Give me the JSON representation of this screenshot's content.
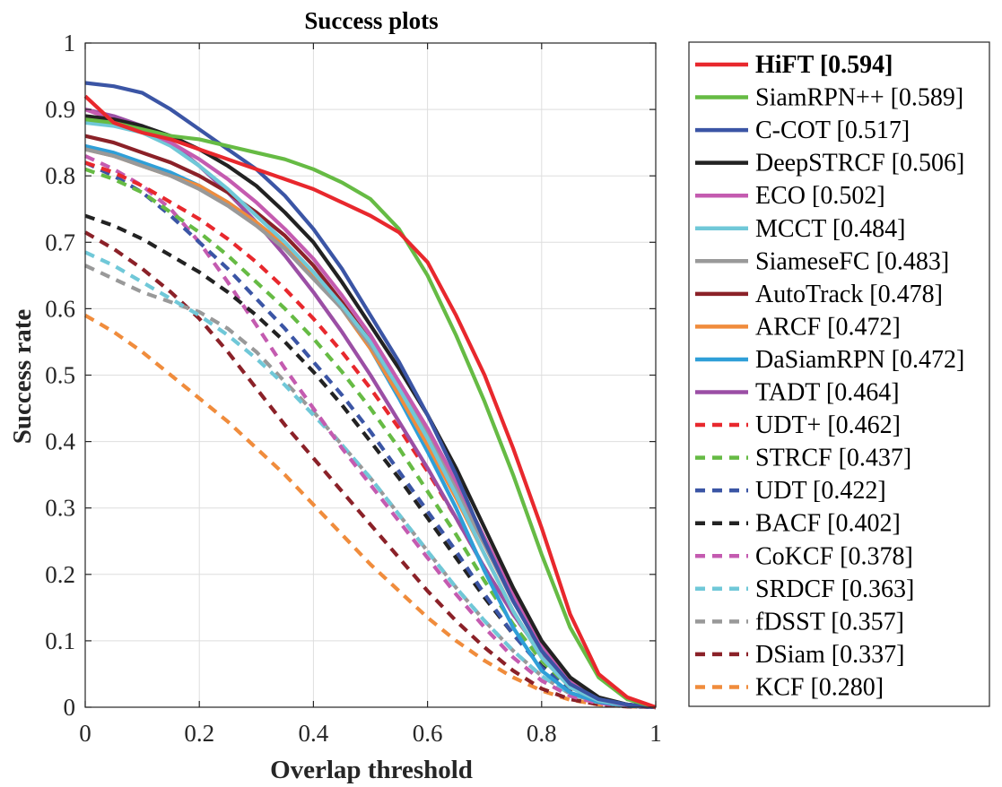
{
  "chart_data": {
    "type": "line",
    "title": "Success plots",
    "xlabel": "Overlap threshold",
    "ylabel": "Success rate",
    "xlim": [
      0,
      1
    ],
    "ylim": [
      0,
      1
    ],
    "xticks": [
      "0",
      "0.2",
      "0.4",
      "0.6",
      "0.8",
      "1"
    ],
    "yticks": [
      "0",
      "0.1",
      "0.2",
      "0.3",
      "0.4",
      "0.5",
      "0.6",
      "0.7",
      "0.8",
      "0.9",
      "1"
    ],
    "grid": true,
    "legend_position": "outside-right",
    "x": [
      0,
      0.05,
      0.1,
      0.15,
      0.2,
      0.25,
      0.3,
      0.35,
      0.4,
      0.45,
      0.5,
      0.55,
      0.6,
      0.65,
      0.7,
      0.75,
      0.8,
      0.85,
      0.9,
      0.95,
      1
    ],
    "series": [
      {
        "name": "HiFT [0.594]",
        "color": "#e8282d",
        "dash": false,
        "bold": true,
        "values": [
          0.92,
          0.88,
          0.865,
          0.855,
          0.84,
          0.825,
          0.81,
          0.795,
          0.78,
          0.76,
          0.74,
          0.715,
          0.67,
          0.59,
          0.5,
          0.39,
          0.27,
          0.14,
          0.05,
          0.015,
          0
        ]
      },
      {
        "name": "SiamRPN++ [0.589]",
        "color": "#66bb44",
        "dash": false,
        "values": [
          0.885,
          0.88,
          0.87,
          0.86,
          0.855,
          0.845,
          0.835,
          0.825,
          0.81,
          0.79,
          0.765,
          0.72,
          0.65,
          0.56,
          0.46,
          0.35,
          0.23,
          0.12,
          0.045,
          0.012,
          0
        ]
      },
      {
        "name": "C-COT [0.517]",
        "color": "#3b55a5",
        "dash": false,
        "values": [
          0.94,
          0.935,
          0.925,
          0.9,
          0.87,
          0.84,
          0.81,
          0.77,
          0.72,
          0.66,
          0.59,
          0.52,
          0.44,
          0.35,
          0.25,
          0.16,
          0.085,
          0.035,
          0.012,
          0.004,
          0
        ]
      },
      {
        "name": "DeepSTRCF [0.506]",
        "color": "#222222",
        "dash": false,
        "values": [
          0.89,
          0.885,
          0.875,
          0.86,
          0.84,
          0.815,
          0.785,
          0.745,
          0.7,
          0.64,
          0.575,
          0.51,
          0.44,
          0.36,
          0.27,
          0.18,
          0.1,
          0.045,
          0.015,
          0.004,
          0
        ]
      },
      {
        "name": "ECO [0.502]",
        "color": "#c45bb0",
        "dash": false,
        "values": [
          0.9,
          0.885,
          0.87,
          0.85,
          0.825,
          0.795,
          0.76,
          0.72,
          0.675,
          0.62,
          0.56,
          0.49,
          0.42,
          0.34,
          0.255,
          0.17,
          0.095,
          0.04,
          0.013,
          0.003,
          0
        ]
      },
      {
        "name": "MCCT [0.484]",
        "color": "#70c8d8",
        "dash": false,
        "values": [
          0.88,
          0.875,
          0.865,
          0.845,
          0.815,
          0.78,
          0.74,
          0.7,
          0.655,
          0.605,
          0.55,
          0.48,
          0.405,
          0.32,
          0.23,
          0.145,
          0.075,
          0.03,
          0.01,
          0.003,
          0
        ]
      },
      {
        "name": "SiameseFC [0.483]",
        "color": "#999999",
        "dash": false,
        "values": [
          0.84,
          0.83,
          0.815,
          0.8,
          0.78,
          0.755,
          0.725,
          0.69,
          0.645,
          0.6,
          0.545,
          0.48,
          0.41,
          0.33,
          0.245,
          0.16,
          0.09,
          0.04,
          0.014,
          0.004,
          0
        ]
      },
      {
        "name": "AutoTrack [0.478]",
        "color": "#8b2128",
        "dash": false,
        "values": [
          0.86,
          0.85,
          0.835,
          0.82,
          0.8,
          0.775,
          0.745,
          0.71,
          0.665,
          0.61,
          0.55,
          0.48,
          0.41,
          0.33,
          0.245,
          0.16,
          0.09,
          0.04,
          0.014,
          0.004,
          0
        ]
      },
      {
        "name": "ARCF [0.472]",
        "color": "#f08c3c",
        "dash": false,
        "values": [
          0.84,
          0.83,
          0.815,
          0.8,
          0.785,
          0.76,
          0.73,
          0.695,
          0.65,
          0.6,
          0.54,
          0.47,
          0.395,
          0.315,
          0.23,
          0.145,
          0.075,
          0.03,
          0.01,
          0.003,
          0
        ]
      },
      {
        "name": "DaSiamRPN [0.472]",
        "color": "#2f9fd8",
        "dash": false,
        "values": [
          0.845,
          0.835,
          0.82,
          0.805,
          0.785,
          0.76,
          0.73,
          0.695,
          0.65,
          0.6,
          0.54,
          0.465,
          0.385,
          0.3,
          0.205,
          0.12,
          0.055,
          0.022,
          0.008,
          0.002,
          0
        ]
      },
      {
        "name": "TADT [0.464]",
        "color": "#9b4fa5",
        "dash": false,
        "values": [
          0.9,
          0.89,
          0.875,
          0.85,
          0.815,
          0.775,
          0.73,
          0.68,
          0.625,
          0.565,
          0.5,
          0.43,
          0.36,
          0.285,
          0.21,
          0.14,
          0.08,
          0.035,
          0.012,
          0.003,
          0
        ]
      },
      {
        "name": "UDT+ [0.462]",
        "color": "#e8282d",
        "dash": true,
        "values": [
          0.82,
          0.805,
          0.785,
          0.76,
          0.735,
          0.705,
          0.67,
          0.63,
          0.585,
          0.535,
          0.48,
          0.42,
          0.355,
          0.285,
          0.21,
          0.14,
          0.08,
          0.036,
          0.012,
          0.003,
          0
        ]
      },
      {
        "name": "STRCF [0.437]",
        "color": "#66bb44",
        "dash": true,
        "values": [
          0.81,
          0.795,
          0.775,
          0.745,
          0.715,
          0.68,
          0.64,
          0.6,
          0.555,
          0.505,
          0.45,
          0.39,
          0.325,
          0.26,
          0.19,
          0.125,
          0.07,
          0.03,
          0.01,
          0.003,
          0
        ]
      },
      {
        "name": "UDT [0.422]",
        "color": "#3b55a5",
        "dash": true,
        "values": [
          0.82,
          0.8,
          0.775,
          0.74,
          0.7,
          0.66,
          0.615,
          0.57,
          0.52,
          0.47,
          0.415,
          0.355,
          0.295,
          0.235,
          0.17,
          0.11,
          0.06,
          0.025,
          0.009,
          0.002,
          0
        ]
      },
      {
        "name": "BACF [0.402]",
        "color": "#222222",
        "dash": true,
        "values": [
          0.74,
          0.725,
          0.705,
          0.68,
          0.655,
          0.625,
          0.59,
          0.55,
          0.505,
          0.455,
          0.4,
          0.345,
          0.285,
          0.225,
          0.165,
          0.11,
          0.062,
          0.027,
          0.009,
          0.002,
          0
        ]
      },
      {
        "name": "CoKCF [0.378]",
        "color": "#c45bb0",
        "dash": true,
        "values": [
          0.83,
          0.81,
          0.785,
          0.75,
          0.7,
          0.64,
          0.575,
          0.51,
          0.45,
          0.39,
          0.335,
          0.28,
          0.225,
          0.17,
          0.12,
          0.075,
          0.04,
          0.017,
          0.006,
          0.002,
          0
        ]
      },
      {
        "name": "SRDCF [0.363]",
        "color": "#70c8d8",
        "dash": true,
        "values": [
          0.685,
          0.665,
          0.64,
          0.615,
          0.59,
          0.56,
          0.525,
          0.485,
          0.44,
          0.395,
          0.345,
          0.29,
          0.235,
          0.18,
          0.13,
          0.085,
          0.047,
          0.02,
          0.007,
          0.002,
          0
        ]
      },
      {
        "name": "fDSST [0.357]",
        "color": "#999999",
        "dash": true,
        "values": [
          0.665,
          0.645,
          0.625,
          0.61,
          0.595,
          0.57,
          0.535,
          0.49,
          0.445,
          0.395,
          0.345,
          0.29,
          0.235,
          0.18,
          0.13,
          0.085,
          0.047,
          0.02,
          0.007,
          0.002,
          0
        ]
      },
      {
        "name": "DSiam [0.337]",
        "color": "#8b2128",
        "dash": true,
        "values": [
          0.715,
          0.69,
          0.66,
          0.625,
          0.585,
          0.535,
          0.48,
          0.425,
          0.375,
          0.325,
          0.275,
          0.225,
          0.175,
          0.13,
          0.09,
          0.055,
          0.028,
          0.012,
          0.004,
          0.001,
          0
        ]
      },
      {
        "name": "KCF [0.280]",
        "color": "#f08c3c",
        "dash": true,
        "values": [
          0.59,
          0.565,
          0.535,
          0.5,
          0.465,
          0.43,
          0.39,
          0.35,
          0.305,
          0.26,
          0.215,
          0.175,
          0.135,
          0.1,
          0.07,
          0.045,
          0.025,
          0.011,
          0.004,
          0.001,
          0
        ]
      }
    ]
  }
}
